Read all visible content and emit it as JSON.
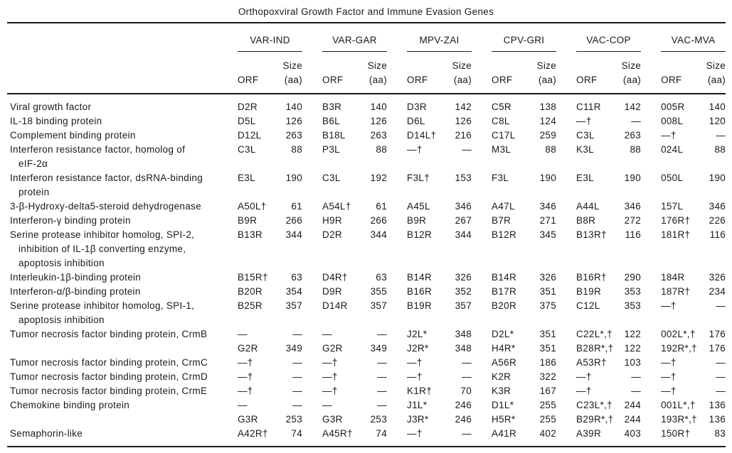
{
  "title": "Orthopoxviral Growth Factor and Immune Evasion Genes",
  "table": {
    "col_headers": {
      "orf": "ORF",
      "size": "Size\n(aa)"
    },
    "viruses": [
      {
        "name": "VAR-IND"
      },
      {
        "name": "VAR-GAR"
      },
      {
        "name": "MPV-ZAI"
      },
      {
        "name": "CPV-GRI"
      },
      {
        "name": "VAC-COP"
      },
      {
        "name": "VAC-MVA"
      }
    ],
    "rows": [
      {
        "label": "Viral growth factor",
        "cells": [
          "D2R",
          "140",
          "B3R",
          "140",
          "D3R",
          "142",
          "C5R",
          "138",
          "C11R",
          "142",
          "005R",
          "140"
        ]
      },
      {
        "label": "IL-18 binding protein",
        "cells": [
          "D5L",
          "126",
          "B6L",
          "126",
          "D6L",
          "126",
          "C8L",
          "124",
          "—†",
          "—",
          "008L",
          "120"
        ]
      },
      {
        "label": "Complement binding protein",
        "cells": [
          "D12L",
          "263",
          "B18L",
          "263",
          "D14L†",
          "216",
          "C17L",
          "259",
          "C3L",
          "263",
          "—†",
          "—"
        ]
      },
      {
        "label": "Interferon resistance factor, homolog of\neIF-2α",
        "cells": [
          "C3L",
          "88",
          "P3L",
          "88",
          "—†",
          "—",
          "M3L",
          "88",
          "K3L",
          "88",
          "024L",
          "88"
        ]
      },
      {
        "label": "Interferon resistance factor, dsRNA-binding\nprotein",
        "cells": [
          "E3L",
          "190",
          "C3L",
          "192",
          "F3L†",
          "153",
          "F3L",
          "190",
          "E3L",
          "190",
          "050L",
          "190"
        ]
      },
      {
        "label": "3-β-Hydroxy-delta5-steroid dehydrogenase",
        "cells": [
          "A50L†",
          "61",
          "A54L†",
          "61",
          "A45L",
          "346",
          "A47L",
          "346",
          "A44L",
          "346",
          "157L",
          "346"
        ]
      },
      {
        "label": "Interferon-γ binding protein",
        "cells": [
          "B9R",
          "266",
          "H9R",
          "266",
          "B9R",
          "267",
          "B7R",
          "271",
          "B8R",
          "272",
          "176R†",
          "226"
        ]
      },
      {
        "label": "Serine protease inhibitor homolog, SPI-2,\ninhibition of IL-1β converting enzyme,\napoptosis inhibition",
        "cells": [
          "B13R",
          "344",
          "D2R",
          "344",
          "B12R",
          "344",
          "B12R",
          "345",
          "B13R†",
          "116",
          "181R†",
          "116"
        ]
      },
      {
        "label": "Interleukin-1β-binding protein",
        "cells": [
          "B15R†",
          "63",
          "D4R†",
          "63",
          "B14R",
          "326",
          "B14R",
          "326",
          "B16R†",
          "290",
          "184R",
          "326"
        ]
      },
      {
        "label": "Interferon-α/β-binding protein",
        "cells": [
          "B20R",
          "354",
          "D9R",
          "355",
          "B16R",
          "352",
          "B17R",
          "351",
          "B19R",
          "353",
          "187R†",
          "234"
        ]
      },
      {
        "label": "Serine protease inhibitor homolog, SPI-1,\napoptosis inhibition",
        "cells": [
          "B25R",
          "357",
          "D14R",
          "357",
          "B19R",
          "357",
          "B20R",
          "375",
          "C12L",
          "353",
          "—†",
          "—"
        ]
      },
      {
        "label": "Tumor necrosis factor binding protein, CrmB",
        "cells": [
          "—",
          "—",
          "—",
          "—",
          "J2L*",
          "348",
          "D2L*",
          "351",
          "C22L*,†",
          "122",
          "002L*,†",
          "176"
        ]
      },
      {
        "label": "",
        "cells": [
          "G2R",
          "349",
          "G2R",
          "349",
          "J2R*",
          "348",
          "H4R*",
          "351",
          "B28R*,†",
          "122",
          "192R*,†",
          "176"
        ]
      },
      {
        "label": "Tumor necrosis factor binding protein, CrmC",
        "cells": [
          "—†",
          "—",
          "—†",
          "—",
          "—†",
          "—",
          "A56R",
          "186",
          "A53R†",
          "103",
          "—†",
          "—"
        ]
      },
      {
        "label": "Tumor necrosis factor binding protein, CrmD",
        "cells": [
          "—†",
          "—",
          "—†",
          "—",
          "—†",
          "—",
          "K2R",
          "322",
          "—†",
          "—",
          "—†",
          "—"
        ]
      },
      {
        "label": "Tumor necrosis factor binding protein, CrmE",
        "cells": [
          "—†",
          "—",
          "—†",
          "—",
          "K1R†",
          "70",
          "K3R",
          "167",
          "—†",
          "—",
          "—†",
          "—"
        ]
      },
      {
        "label": "Chemokine binding protein",
        "cells": [
          "—",
          "—",
          "—",
          "—",
          "J1L*",
          "246",
          "D1L*",
          "255",
          "C23L*,†",
          "244",
          "001L*,†",
          "136"
        ]
      },
      {
        "label": "",
        "cells": [
          "G3R",
          "253",
          "G3R",
          "253",
          "J3R*",
          "246",
          "H5R*",
          "255",
          "B29R*,†",
          "244",
          "193R*,†",
          "136"
        ]
      },
      {
        "label": "Semaphorin-like",
        "cells": [
          "A42R†",
          "74",
          "A45R†",
          "74",
          "—†",
          "—",
          "A41R",
          "402",
          "A39R",
          "403",
          "150R†",
          "83"
        ]
      }
    ]
  }
}
